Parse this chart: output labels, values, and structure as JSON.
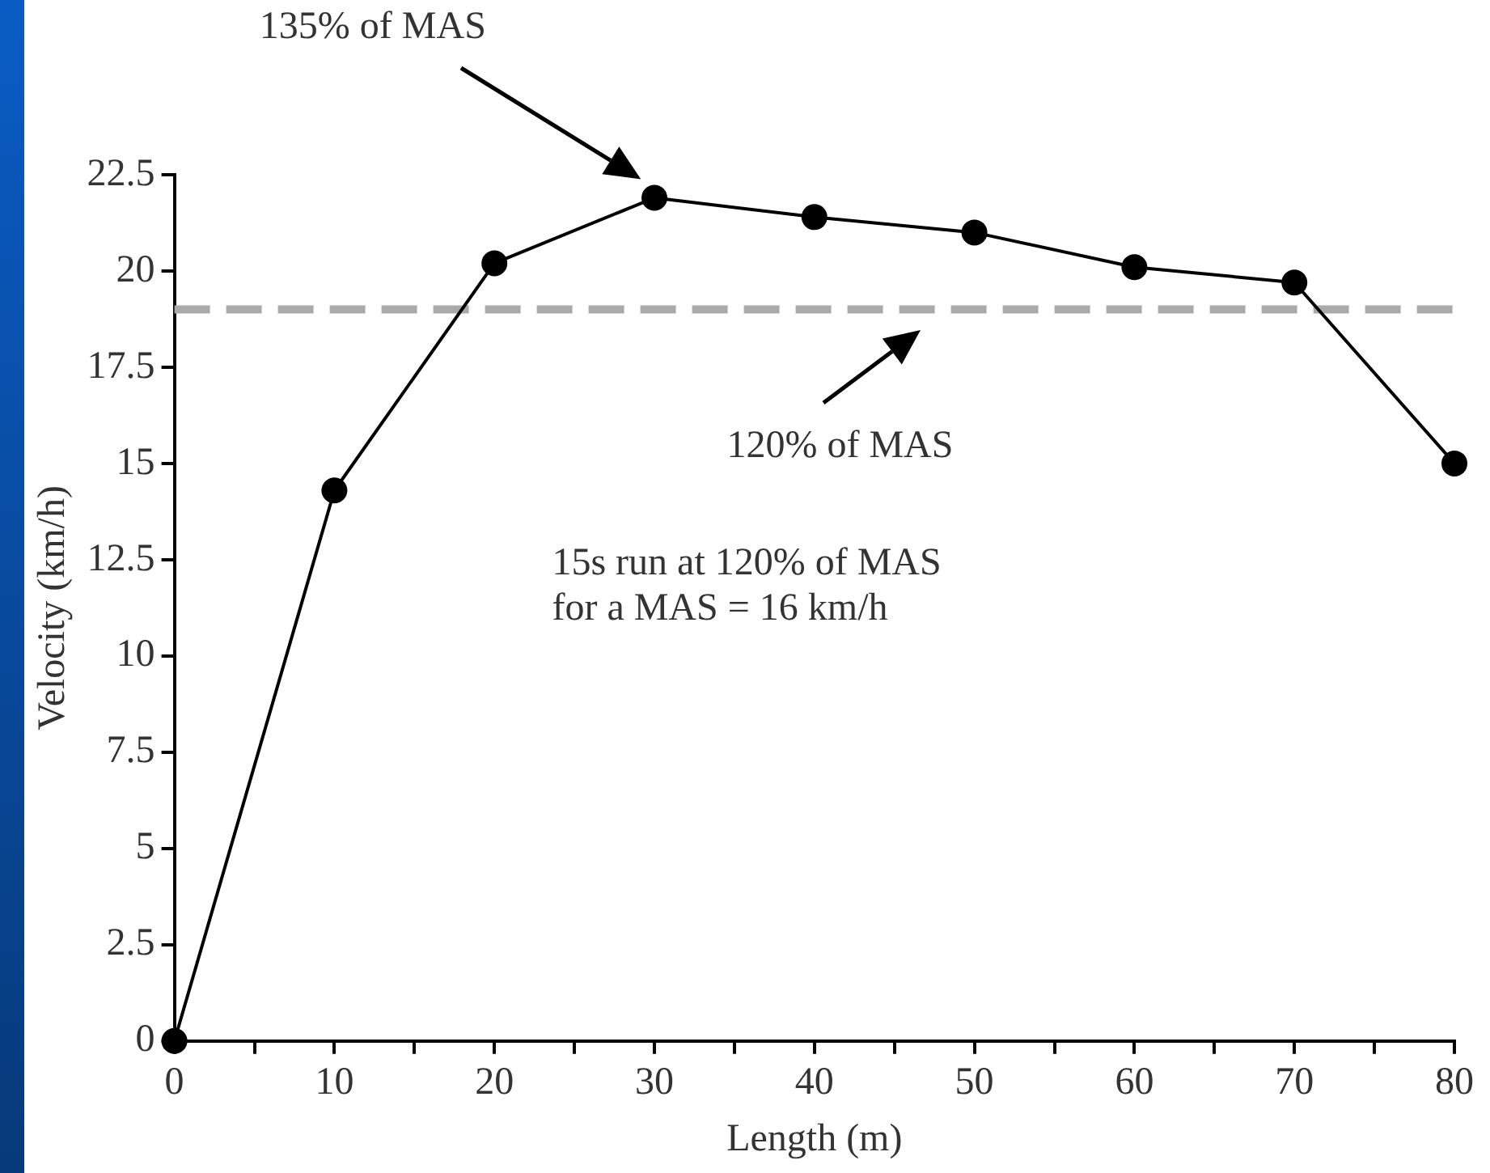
{
  "chart_data": {
    "type": "line",
    "xlabel": "Length (m)",
    "ylabel": "Velocity (km/h)",
    "x": [
      0,
      10,
      20,
      30,
      40,
      50,
      60,
      70,
      80
    ],
    "series": [
      {
        "color": "#000000",
        "values": [
          0,
          14.3,
          20.2,
          21.9,
          21.4,
          21.0,
          20.1,
          19.7,
          15.0
        ]
      }
    ],
    "xlim": [
      0,
      80
    ],
    "xticks": [
      0,
      {
        "value": 5,
        "label": null
      },
      10,
      {
        "value": 15,
        "label": null
      },
      20,
      {
        "value": 25,
        "label": null
      },
      30,
      {
        "value": 35,
        "label": null
      },
      40,
      {
        "value": 45,
        "label": null
      },
      50,
      {
        "value": 55,
        "label": null
      },
      60,
      {
        "value": 65,
        "label": null
      },
      70,
      {
        "value": 75,
        "label": null
      },
      80
    ],
    "ylim": [
      0,
      22.5
    ],
    "yticks": [
      0,
      2.5,
      5,
      7.5,
      10,
      12.5,
      15,
      17.5,
      20,
      22.5
    ],
    "grid": false,
    "legend": false,
    "marker": "circle",
    "line_style": "solid",
    "ref_lines": [
      {
        "axis": "y",
        "value": 19,
        "label": "120% of MAS",
        "color": "#aaaaaa",
        "line_style": "dashed"
      }
    ],
    "annotations": [
      "135% of MAS",
      "15s run at 120% of MAS\nfor a MAS = 16 km/h"
    ]
  }
}
